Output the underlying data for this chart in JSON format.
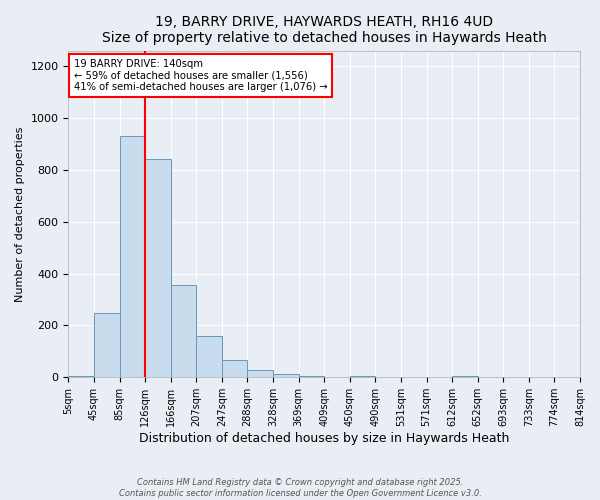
{
  "title": "19, BARRY DRIVE, HAYWARDS HEATH, RH16 4UD",
  "subtitle": "Size of property relative to detached houses in Haywards Heath",
  "xlabel": "Distribution of detached houses by size in Haywards Heath",
  "ylabel": "Number of detached properties",
  "bin_labels": [
    "5sqm",
    "45sqm",
    "85sqm",
    "126sqm",
    "166sqm",
    "207sqm",
    "247sqm",
    "288sqm",
    "328sqm",
    "369sqm",
    "409sqm",
    "450sqm",
    "490sqm",
    "531sqm",
    "571sqm",
    "612sqm",
    "652sqm",
    "693sqm",
    "733sqm",
    "774sqm",
    "814sqm"
  ],
  "bar_values": [
    5,
    247,
    930,
    840,
    355,
    160,
    65,
    30,
    13,
    5,
    0,
    5,
    0,
    0,
    0,
    5,
    0,
    0,
    0,
    0
  ],
  "bar_color": "#c8dcee",
  "bar_edge_color": "#6699bb",
  "property_bin_index": 3,
  "property_value_label": "140sqm",
  "vline_color": "red",
  "annotation_text": "19 BARRY DRIVE: 140sqm\n← 59% of detached houses are smaller (1,556)\n41% of semi-detached houses are larger (1,076) →",
  "annotation_box_color": "white",
  "annotation_box_edge_color": "red",
  "ylim": [
    0,
    1260
  ],
  "yticks": [
    0,
    200,
    400,
    600,
    800,
    1000,
    1200
  ],
  "background_color": "#e8eef4",
  "footer_line1": "Contains HM Land Registry data © Crown copyright and database right 2025.",
  "footer_line2": "Contains public sector information licensed under the Open Government Licence v3.0."
}
